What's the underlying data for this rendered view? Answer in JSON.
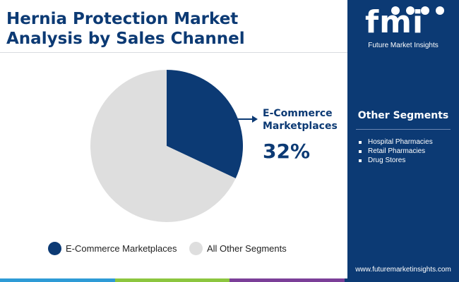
{
  "title": {
    "line1": "Hernia Protection Market",
    "line2": "Analysis by Sales Channel"
  },
  "brand": {
    "logo_text": "fmi",
    "tagline": "Future Market Insights",
    "website": "www.futuremarketinsights.com"
  },
  "sidebar": {
    "heading": "Other Segments",
    "items": [
      "Hospital Pharmacies",
      "Retail Pharmacies",
      "Drug Stores"
    ]
  },
  "callout": {
    "label_line1": "E-Commerce",
    "label_line2": "Marketplaces",
    "value": "32%"
  },
  "colors": {
    "primary": "#0c3a74",
    "other": "#dedede",
    "bar": [
      "#2e9bd6",
      "#8cc63f",
      "#7b3f98",
      "#0c3a74"
    ]
  },
  "chart_data": {
    "type": "pie",
    "slices": [
      {
        "name": "E-Commerce Marketplaces",
        "value": 32,
        "color": "#0c3a74"
      },
      {
        "name": "All Other Segments",
        "value": 68,
        "color": "#dedede"
      }
    ]
  }
}
